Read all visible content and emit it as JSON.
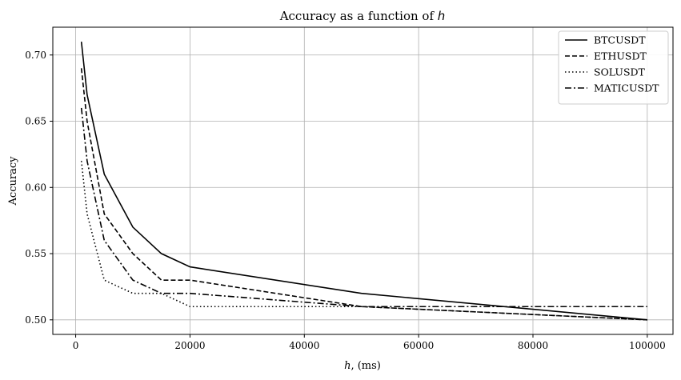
{
  "chart_data": {
    "type": "line",
    "title": "Accuracy as a function of h",
    "title_prefix": "Accuracy as a function of ",
    "title_var": "h",
    "xlabel": "h, (ms)",
    "xlabel_var": "h",
    "xlabel_rest": ", (ms)",
    "ylabel": "Accuracy",
    "xlim": [
      -4000,
      104500
    ],
    "ylim": [
      0.489,
      0.721
    ],
    "xticks": [
      0,
      20000,
      40000,
      60000,
      80000,
      100000
    ],
    "xtick_labels": [
      "0",
      "20000",
      "40000",
      "60000",
      "80000",
      "100000"
    ],
    "yticks": [
      0.5,
      0.55,
      0.6,
      0.65,
      0.7
    ],
    "ytick_labels": [
      "0.50",
      "0.55",
      "0.60",
      "0.65",
      "0.70"
    ],
    "grid": true,
    "legend_position": "top-right",
    "series": [
      {
        "name": "BTCUSDT",
        "dash": "solid",
        "points": [
          [
            1000,
            0.71
          ],
          [
            2000,
            0.67
          ],
          [
            5000,
            0.61
          ],
          [
            10000,
            0.57
          ],
          [
            15000,
            0.55
          ],
          [
            20000,
            0.54
          ],
          [
            50000,
            0.52
          ],
          [
            100000,
            0.5
          ]
        ]
      },
      {
        "name": "ETHUSDT",
        "dash": "dashed",
        "points": [
          [
            1000,
            0.69
          ],
          [
            2000,
            0.65
          ],
          [
            5000,
            0.58
          ],
          [
            10000,
            0.55
          ],
          [
            15000,
            0.53
          ],
          [
            20000,
            0.53
          ],
          [
            50000,
            0.51
          ],
          [
            100000,
            0.5
          ]
        ]
      },
      {
        "name": "SOLUSDT",
        "dash": "dotted",
        "points": [
          [
            1000,
            0.62
          ],
          [
            2000,
            0.58
          ],
          [
            5000,
            0.53
          ],
          [
            10000,
            0.52
          ],
          [
            15000,
            0.52
          ],
          [
            20000,
            0.51
          ],
          [
            50000,
            0.51
          ],
          [
            100000,
            0.5
          ]
        ]
      },
      {
        "name": "MATICUSDT",
        "dash": "dashdot",
        "points": [
          [
            1000,
            0.66
          ],
          [
            2000,
            0.62
          ],
          [
            5000,
            0.56
          ],
          [
            10000,
            0.53
          ],
          [
            15000,
            0.52
          ],
          [
            20000,
            0.52
          ],
          [
            50000,
            0.51
          ],
          [
            100000,
            0.51
          ]
        ]
      }
    ]
  }
}
